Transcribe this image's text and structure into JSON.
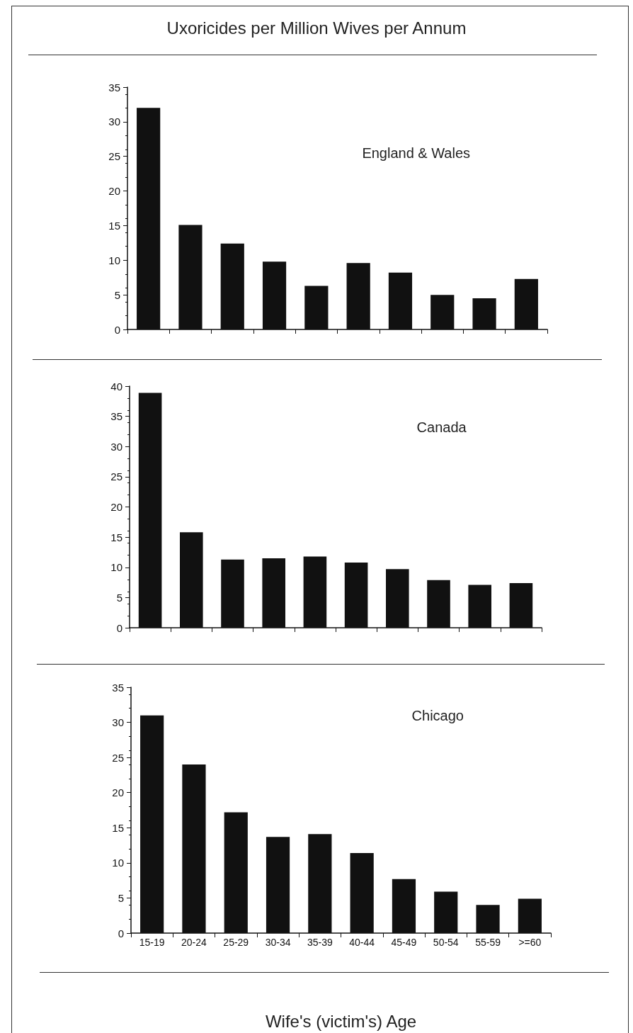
{
  "chart_data": [
    {
      "type": "bar",
      "title": "Uxoricides per Million Wives per Annum",
      "categories": [
        null,
        null,
        null,
        null,
        null,
        null,
        null,
        null,
        null,
        null
      ],
      "series": [
        {
          "name": "England & Wales",
          "color": "#111111",
          "values": [
            32,
            15.1,
            12.4,
            9.8,
            6.3,
            9.6,
            8.2,
            5.0,
            4.5,
            7.3
          ]
        }
      ],
      "ylim": [
        0,
        35
      ],
      "yticks": [
        0,
        5,
        10,
        15,
        20,
        25,
        30,
        35
      ],
      "tick_labels": "y",
      "grid": false,
      "legend": false
    },
    {
      "type": "bar",
      "categories": [
        null,
        null,
        null,
        null,
        null,
        null,
        null,
        null,
        null,
        null
      ],
      "series": [
        {
          "name": "Canada",
          "color": "#111111",
          "values": [
            38.9,
            15.8,
            11.3,
            11.5,
            11.8,
            10.8,
            9.7,
            7.9,
            7.1,
            7.4
          ]
        }
      ],
      "ylim": [
        0,
        40
      ],
      "yticks": [
        0,
        5,
        10,
        15,
        20,
        25,
        30,
        35,
        40
      ],
      "tick_labels": "y",
      "grid": false,
      "legend": false
    },
    {
      "type": "bar",
      "xlabel": "Wife's (victim's) Age",
      "categories": [
        "15-19",
        "20-24",
        "25-29",
        "30-34",
        "35-39",
        "40-44",
        "45-49",
        "50-54",
        "55-59",
        ">=60"
      ],
      "series": [
        {
          "name": "Chicago",
          "color": "#111111",
          "values": [
            31,
            24,
            17.2,
            13.7,
            14.1,
            11.4,
            7.7,
            5.9,
            4.0,
            4.9
          ]
        }
      ],
      "ylim": [
        0,
        35
      ],
      "yticks": [
        0,
        5,
        10,
        15,
        20,
        25,
        30,
        35
      ],
      "grid": false,
      "legend": false
    }
  ]
}
